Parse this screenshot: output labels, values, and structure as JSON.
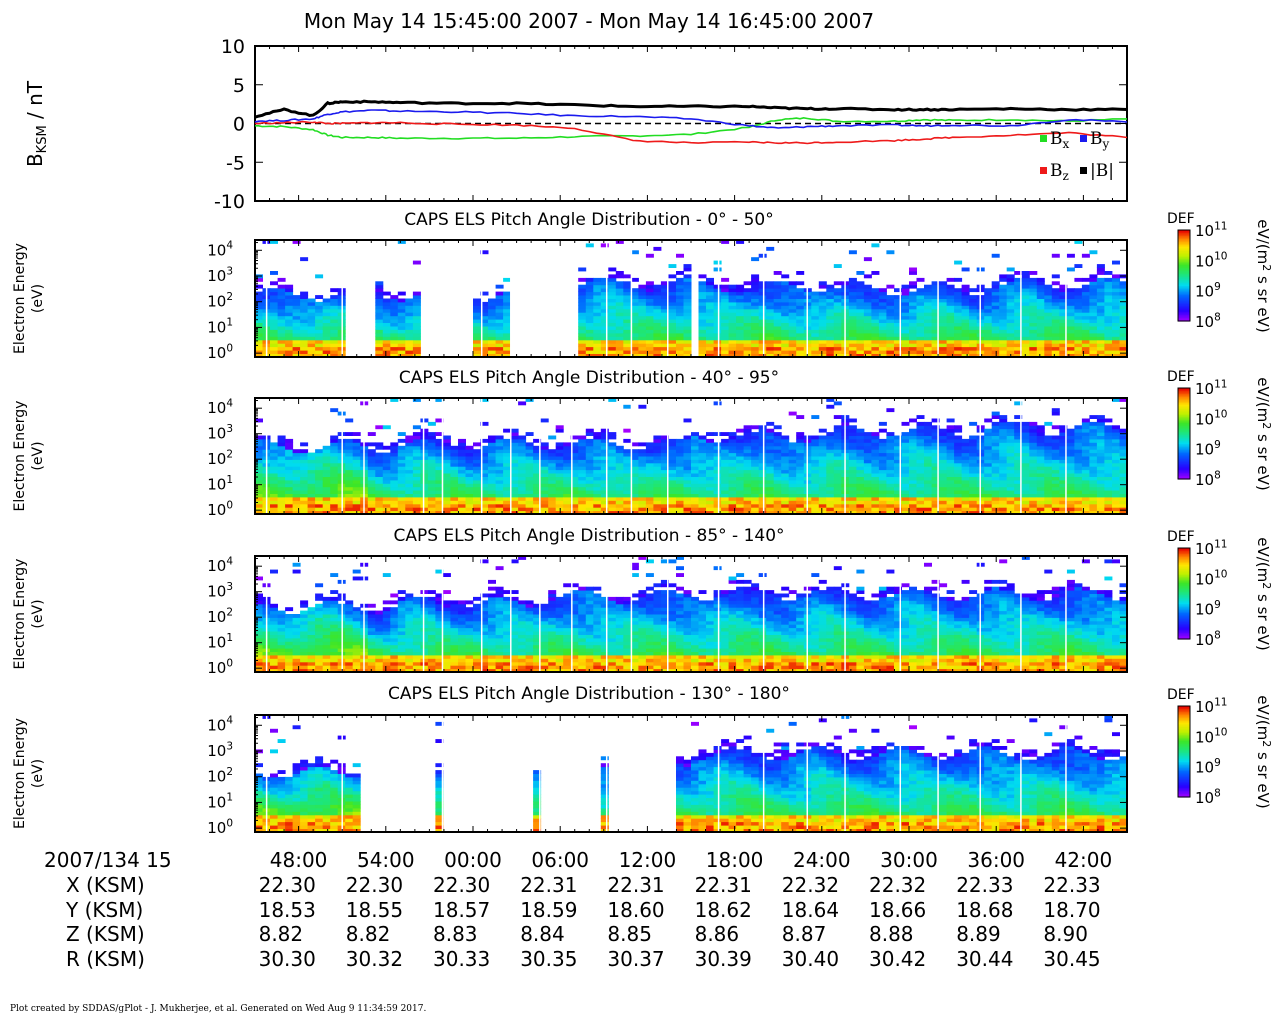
{
  "title": "Mon May 14 15:45:00 2007 - Mon May 14 16:45:00 2007",
  "footer": "Plot created by SDDAS/gPlot - J. Mukherjee, et al.  Generated on Wed Aug 9 11:34:59 2017.",
  "chart_data": [
    {
      "type": "line",
      "ylabel": "B_KSM / nT",
      "ylim": [
        -10,
        10
      ],
      "yticks": [
        "10",
        "5",
        "0",
        "-5",
        "-10"
      ],
      "x_unit": "minutes after 15:45",
      "xlim": [
        0,
        60
      ],
      "x": [
        0,
        2,
        4,
        5,
        6,
        8,
        10,
        14,
        18,
        22,
        26,
        30,
        34,
        36,
        38,
        40,
        44,
        46,
        48,
        52,
        56,
        60
      ],
      "series": [
        {
          "name": "Bx",
          "color": "#22dd22",
          "values": [
            -0.3,
            -0.4,
            -0.8,
            -1.5,
            -1.8,
            -1.8,
            -1.9,
            -1.9,
            -1.9,
            -1.7,
            -1.6,
            -1.4,
            -0.5,
            0.5,
            0.7,
            0.3,
            0.3,
            0.5,
            0.4,
            0.5,
            0.3,
            0.6
          ]
        },
        {
          "name": "By",
          "color": "#1a1aee",
          "values": [
            0.3,
            0.4,
            0.6,
            1.2,
            1.5,
            1.7,
            1.6,
            1.5,
            1.3,
            1.0,
            0.9,
            0.6,
            -0.3,
            -0.6,
            -0.4,
            -0.3,
            -0.2,
            -0.3,
            -0.2,
            -0.3,
            0.5,
            0.2
          ]
        },
        {
          "name": "Bz",
          "color": "#ee1a1a",
          "values": [
            0.0,
            0.1,
            0.2,
            0.0,
            0.0,
            0.1,
            0.1,
            -0.1,
            -0.2,
            -0.6,
            -2.2,
            -2.5,
            -2.4,
            -2.5,
            -2.5,
            -2.4,
            -2.2,
            -2.0,
            -1.8,
            -1.5,
            -1.2,
            -1.8
          ]
        },
        {
          "name": "|B|",
          "color": "#000000",
          "values": [
            0.9,
            1.8,
            1.0,
            2.6,
            2.8,
            2.8,
            2.7,
            2.6,
            2.6,
            2.4,
            2.2,
            2.2,
            2.2,
            2.0,
            1.9,
            1.9,
            1.8,
            1.8,
            1.8,
            1.9,
            1.8,
            1.8
          ]
        }
      ],
      "legend": [
        "Bx",
        "By",
        "Bz",
        "|B|"
      ],
      "zero_line": "dashed"
    },
    {
      "type": "heatmap",
      "title": "CAPS ELS Pitch Angle Distribution - 0° - 50°",
      "ylabel": "Electron Energy (eV)",
      "colorbar_label": "DEF",
      "colorbar_unit": "eV/(m² s sr eV)",
      "zlim_exp": [
        8,
        11
      ],
      "gaps_minutes": [
        [
          6.0,
          8.3
        ],
        [
          11.5,
          15.2
        ],
        [
          17.8,
          22.0
        ],
        [
          29.8,
          30.6
        ]
      ],
      "upper_limit_log": [
        2.3,
        2.3,
        2.7,
        2.6,
        2.5,
        2.7
      ]
    },
    {
      "type": "heatmap",
      "title": "CAPS ELS Pitch Angle Distribution - 40° - 95°",
      "ylabel": "Electron Energy (eV)",
      "colorbar_label": "DEF",
      "colorbar_unit": "eV/(m² s sr eV)",
      "zlim_exp": [
        8,
        11
      ],
      "gaps_minutes": [],
      "upper_limit_log": [
        2.5,
        2.6,
        2.6,
        2.9,
        3.1,
        3.2
      ]
    },
    {
      "type": "heatmap",
      "title": "CAPS ELS Pitch Angle Distribution - 85° - 140°",
      "ylabel": "Electron Energy (eV)",
      "colorbar_label": "DEF",
      "colorbar_unit": "eV/(m² s sr eV)",
      "zlim_exp": [
        8,
        11
      ],
      "gaps_minutes": [],
      "upper_limit_log": [
        2.4,
        2.6,
        2.8,
        2.9,
        2.9,
        2.9
      ]
    },
    {
      "type": "heatmap",
      "title": "CAPS ELS Pitch Angle Distribution - 130° - 180°",
      "ylabel": "Electron Energy (eV)",
      "colorbar_label": "DEF",
      "colorbar_unit": "eV/(m² s sr eV)",
      "zlim_exp": [
        8,
        11
      ],
      "gaps_minutes": [
        [
          7.3,
          12.5
        ],
        [
          13.0,
          19.3
        ],
        [
          19.6,
          24.0
        ],
        [
          24.5,
          29.2
        ]
      ],
      "upper_limit_log": [
        2.2,
        2.4,
        2.6,
        2.9,
        2.9,
        2.9
      ]
    }
  ],
  "energy_ticks_exp": [
    "4",
    "3",
    "2",
    "1",
    "0"
  ],
  "colorbar_ticks_exp": [
    "11",
    "10",
    "9",
    "8"
  ],
  "ephemeris": {
    "row_labels": [
      "2007/134 15",
      "X (KSM)",
      "Y (KSM)",
      "Z (KSM)",
      "R (KSM)"
    ],
    "times": [
      "48:00",
      "54:00",
      "00:00",
      "06:00",
      "12:00",
      "18:00",
      "24:00",
      "30:00",
      "36:00",
      "42:00"
    ],
    "X": [
      "22.30",
      "22.30",
      "22.30",
      "22.31",
      "22.31",
      "22.31",
      "22.32",
      "22.32",
      "22.33",
      "22.33"
    ],
    "Y": [
      "18.53",
      "18.55",
      "18.57",
      "18.59",
      "18.60",
      "18.62",
      "18.64",
      "18.66",
      "18.68",
      "18.70"
    ],
    "Z": [
      "8.82",
      "8.82",
      "8.83",
      "8.84",
      "8.85",
      "8.86",
      "8.87",
      "8.88",
      "8.89",
      "8.90"
    ],
    "R": [
      "30.30",
      "30.32",
      "30.33",
      "30.35",
      "30.37",
      "30.39",
      "30.40",
      "30.42",
      "30.44",
      "30.45"
    ]
  }
}
